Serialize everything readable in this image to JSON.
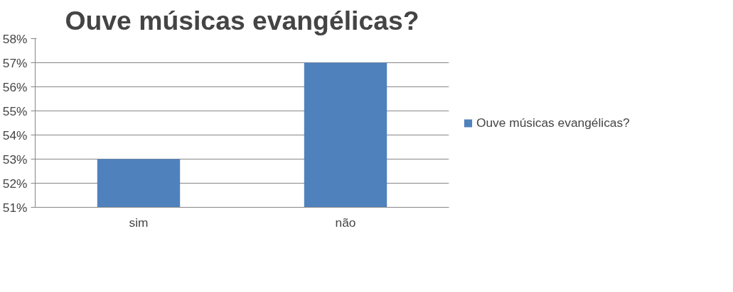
{
  "chart_data": {
    "type": "bar",
    "title": "Ouve músicas evangélicas?",
    "categories": [
      "sim",
      "não"
    ],
    "series": [
      {
        "name": "Ouve músicas evangélicas?",
        "color": "#4f81bd",
        "values": [
          53,
          57
        ]
      }
    ],
    "ylim": [
      51,
      58
    ],
    "yticks": [
      {
        "value": 51,
        "label": "51%"
      },
      {
        "value": 52,
        "label": "52%"
      },
      {
        "value": 53,
        "label": "53%"
      },
      {
        "value": 54,
        "label": "54%"
      },
      {
        "value": 55,
        "label": "55%"
      },
      {
        "value": 56,
        "label": "56%"
      },
      {
        "value": 57,
        "label": "57%"
      },
      {
        "value": 58,
        "label": "58%"
      }
    ],
    "grid": "y",
    "legend": "right"
  }
}
